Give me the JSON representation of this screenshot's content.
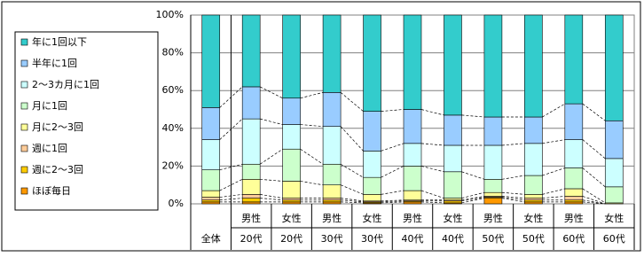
{
  "chart_data": {
    "type": "stacked_bar_100",
    "categories": [
      [
        "全体"
      ],
      [
        "男性",
        "20代"
      ],
      [
        "女性",
        "20代"
      ],
      [
        "男性",
        "30代"
      ],
      [
        "女性",
        "30代"
      ],
      [
        "男性",
        "40代"
      ],
      [
        "女性",
        "40代"
      ],
      [
        "男性",
        "50代"
      ],
      [
        "女性",
        "50代"
      ],
      [
        "男性",
        "60代"
      ],
      [
        "女性",
        "60代"
      ]
    ],
    "series": [
      {
        "name": "ほぼ毎日",
        "color": "#ff9900",
        "values": [
          1,
          1,
          1,
          1,
          0.5,
          1,
          0.5,
          3,
          1,
          1,
          0
        ]
      },
      {
        "name": "週に2～3回",
        "color": "#ffcc00",
        "values": [
          1,
          2,
          1,
          1,
          0.5,
          0.5,
          1,
          0.5,
          1,
          1,
          0
        ]
      },
      {
        "name": "週に1回",
        "color": "#ffcc99",
        "values": [
          1.5,
          2,
          1,
          1,
          0.5,
          0.5,
          0.5,
          0.5,
          1,
          2,
          0
        ]
      },
      {
        "name": "月に2～3回",
        "color": "#ffff99",
        "values": [
          3.5,
          8,
          9,
          7,
          3.5,
          5,
          1,
          2,
          2,
          4,
          0.5
        ]
      },
      {
        "name": "月に1回",
        "color": "#ccffcc",
        "values": [
          11,
          8,
          17,
          11,
          9,
          13,
          14,
          7,
          10,
          11,
          8.5
        ]
      },
      {
        "name": "2～3カ月に1回",
        "color": "#ccffff",
        "values": [
          16,
          24,
          13,
          20,
          14,
          12,
          14,
          18,
          17,
          15,
          15
        ]
      },
      {
        "name": "半年に1回",
        "color": "#99ccff",
        "values": [
          17,
          17,
          14,
          18,
          21,
          18,
          16,
          15,
          14,
          19,
          20
        ]
      },
      {
        "name": "年に1回以下",
        "color": "#33cccc",
        "values": [
          49,
          38,
          44,
          41,
          51,
          50,
          53,
          54,
          54,
          47,
          56
        ]
      }
    ],
    "ylim": [
      0,
      100
    ],
    "yticks": [
      {
        "value": 0,
        "label": "0%"
      },
      {
        "value": 20,
        "label": "20%"
      },
      {
        "value": 40,
        "label": "40%"
      },
      {
        "value": 60,
        "label": "60%"
      },
      {
        "value": 80,
        "label": "80%"
      },
      {
        "value": 100,
        "label": "100%"
      }
    ],
    "grid": true,
    "legend": "left"
  }
}
